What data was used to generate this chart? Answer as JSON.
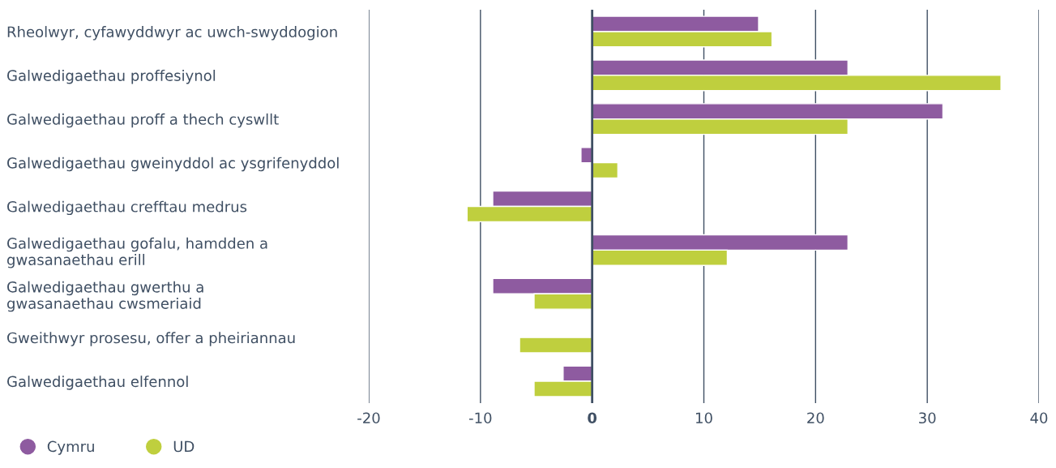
{
  "chart_data": {
    "type": "bar",
    "orientation": "horizontal",
    "categories": [
      "Rheolwyr, cyfawyddwyr ac uwch-swyddogion",
      "Galwedigaethau proffesiynol",
      "Galwedigaethau proff a thech cyswllt",
      "Galwedigaethau gweinyddol ac ysgrifenyddol",
      "Galwedigaethau crefftau medrus",
      "Galwedigaethau gofalu, hamdden a\ngwasanaethau erill",
      "Galwedigaethau gwerthu a\ngwasanaethau cwsmeriaid",
      "Gweithwyr prosesu, offer a pheiriannau",
      "Galwedigaethau elfennol"
    ],
    "series": [
      {
        "name": "Cymru",
        "color": "#8e5ba0",
        "values": [
          14.9,
          22.9,
          31.4,
          -1.0,
          -8.9,
          22.9,
          -8.9,
          null,
          -2.6
        ]
      },
      {
        "name": "UD",
        "color": "#bfcf3e",
        "values": [
          16.1,
          36.6,
          22.9,
          2.3,
          -11.2,
          12.1,
          -5.2,
          -6.5,
          -5.2
        ]
      }
    ],
    "xlim": [
      -20,
      40
    ],
    "xticks": [
      -20,
      -10,
      0,
      10,
      20,
      30,
      40
    ],
    "grid": "x",
    "legend": "bottom left",
    "ref_lines": [
      {
        "axis": "x",
        "value": 0,
        "color": "#3f4f63"
      }
    ]
  }
}
